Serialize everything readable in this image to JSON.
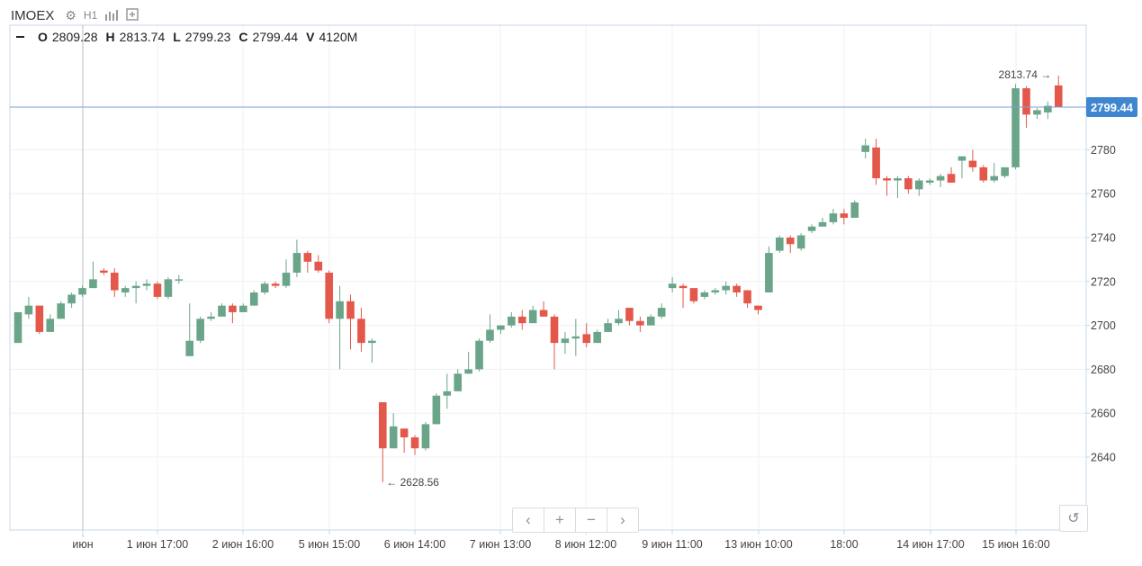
{
  "toolbar": {
    "symbol": "IMOEX",
    "interval": "H1",
    "icons": [
      "gear-icon",
      "bars-icon",
      "compare-icon"
    ]
  },
  "ohlc": {
    "o_label": "O",
    "o": "2809.28",
    "h_label": "H",
    "h": "2813.74",
    "l_label": "L",
    "l": "2799.23",
    "c_label": "C",
    "c": "2799.44",
    "v_label": "V",
    "v": "4120M"
  },
  "nav": {
    "prev": "‹",
    "zoom_in": "+",
    "zoom_out": "−",
    "next": "›",
    "reset": "↺"
  },
  "colors": {
    "up": "#6aa58a",
    "down": "#e3584b",
    "grid": "#eef0f3",
    "price_line": "#7b9ed6",
    "price_tag": "#3f86d1"
  },
  "chart_data": {
    "type": "candlestick",
    "ylim": [
      2620,
      2820
    ],
    "y_ticks": [
      2640,
      2660,
      2680,
      2700,
      2720,
      2740,
      2760,
      2780
    ],
    "x_ticks": [
      "июн",
      "1 июн 17:00",
      "2 июн 16:00",
      "5 июн 15:00",
      "6 июн 14:00",
      "7 июн 13:00",
      "8 июн 12:00",
      "9 июн 11:00",
      "13 июн 10:00",
      "18:00",
      "14 июн 17:00",
      "15 июн 16:00"
    ],
    "last_price": 2799.44,
    "last_price_label": "2799.44",
    "max_label": "2813.74 →",
    "min_label": "← 2628.56",
    "candles": [
      [
        2692,
        2706,
        2692,
        2706
      ],
      [
        2705,
        2713,
        2703,
        2709
      ],
      [
        2709,
        2709,
        2696,
        2697
      ],
      [
        2697,
        2705,
        2697,
        2703
      ],
      [
        2703,
        2711,
        2703,
        2710
      ],
      [
        2710,
        2715,
        2708,
        2714
      ],
      [
        2714,
        2718,
        2713,
        2717
      ],
      [
        2717,
        2729,
        2717,
        2721
      ],
      [
        2725,
        2726,
        2723,
        2724
      ],
      [
        2724,
        2726,
        2713,
        2716
      ],
      [
        2715,
        2718,
        2713,
        2717
      ],
      [
        2717,
        2720,
        2710,
        2718
      ],
      [
        2718,
        2721,
        2716,
        2719
      ],
      [
        2719,
        2720,
        2712,
        2713
      ],
      [
        2713,
        2722,
        2712,
        2721
      ],
      [
        2721,
        2723,
        2719,
        2721
      ],
      [
        2686,
        2710,
        2686,
        2693
      ],
      [
        2693,
        2704,
        2692,
        2703
      ],
      [
        2703,
        2706,
        2702,
        2704
      ],
      [
        2704,
        2710,
        2704,
        2709
      ],
      [
        2709,
        2710,
        2701,
        2706
      ],
      [
        2706,
        2710,
        2706,
        2709
      ],
      [
        2709,
        2716,
        2709,
        2715
      ],
      [
        2715,
        2720,
        2714,
        2719
      ],
      [
        2719,
        2720,
        2717,
        2718
      ],
      [
        2718,
        2730,
        2717,
        2724
      ],
      [
        2724,
        2739,
        2722,
        2733
      ],
      [
        2733,
        2734,
        2724,
        2729
      ],
      [
        2729,
        2732,
        2724,
        2725
      ],
      [
        2724,
        2725,
        2701,
        2703
      ],
      [
        2703,
        2718,
        2680,
        2711
      ],
      [
        2711,
        2714,
        2689,
        2703
      ],
      [
        2703,
        2708,
        2688,
        2692
      ],
      [
        2692,
        2694,
        2683,
        2693
      ],
      [
        2665,
        2665,
        2628.56,
        2644
      ],
      [
        2644,
        2660,
        2644,
        2654
      ],
      [
        2653,
        2653,
        2642,
        2649
      ],
      [
        2649,
        2650,
        2641,
        2644
      ],
      [
        2644,
        2656,
        2643,
        2655
      ],
      [
        2655,
        2669,
        2655,
        2668
      ],
      [
        2668,
        2678,
        2662,
        2670
      ],
      [
        2670,
        2680,
        2670,
        2678
      ],
      [
        2678,
        2688,
        2678,
        2680
      ],
      [
        2680,
        2694,
        2679,
        2693
      ],
      [
        2693,
        2705,
        2692,
        2698
      ],
      [
        2698,
        2700,
        2696,
        2700
      ],
      [
        2700,
        2706,
        2699,
        2704
      ],
      [
        2704,
        2707,
        2698,
        2701
      ],
      [
        2701,
        2709,
        2701,
        2707
      ],
      [
        2707,
        2711,
        2704,
        2704
      ],
      [
        2704,
        2705,
        2680,
        2692
      ],
      [
        2692,
        2697,
        2687,
        2694
      ],
      [
        2694,
        2703,
        2686,
        2695
      ],
      [
        2696,
        2701,
        2690,
        2692
      ],
      [
        2692,
        2698,
        2692,
        2697
      ],
      [
        2697,
        2703,
        2697,
        2701
      ],
      [
        2701,
        2707,
        2700,
        2703
      ],
      [
        2708,
        2708,
        2700,
        2702
      ],
      [
        2702,
        2704,
        2697,
        2700
      ],
      [
        2700,
        2705,
        2700,
        2704
      ],
      [
        2704,
        2710,
        2703,
        2708
      ],
      [
        2717,
        2722,
        2715,
        2719
      ],
      [
        2718,
        2719,
        2708,
        2717
      ],
      [
        2717,
        2717,
        2710,
        2711
      ],
      [
        2713,
        2716,
        2712,
        2715
      ],
      [
        2715,
        2717,
        2714,
        2716
      ],
      [
        2716,
        2720,
        2714,
        2718
      ],
      [
        2718,
        2719,
        2713,
        2715
      ],
      [
        2716,
        2716,
        2708,
        2710
      ],
      [
        2709,
        2709,
        2705,
        2707
      ],
      [
        2715,
        2736,
        2715,
        2733
      ],
      [
        2734,
        2741,
        2733,
        2740
      ],
      [
        2740,
        2741,
        2733,
        2737
      ],
      [
        2735,
        2742,
        2734,
        2741
      ],
      [
        2743,
        2746,
        2742,
        2745
      ],
      [
        2745,
        2749,
        2745,
        2747
      ],
      [
        2747,
        2753,
        2746,
        2751
      ],
      [
        2751,
        2753,
        2746,
        2749
      ],
      [
        2749,
        2757,
        2749,
        2756
      ],
      [
        2779,
        2785,
        2776,
        2782
      ],
      [
        2781,
        2785,
        2764,
        2767
      ],
      [
        2767,
        2768,
        2759,
        2766
      ],
      [
        2766,
        2768,
        2758,
        2767
      ],
      [
        2767,
        2768,
        2760,
        2762
      ],
      [
        2762,
        2767,
        2759,
        2766
      ],
      [
        2765,
        2767,
        2764,
        2766
      ],
      [
        2766,
        2769,
        2763,
        2768
      ],
      [
        2769,
        2772,
        2765,
        2765
      ],
      [
        2775,
        2777,
        2767,
        2777
      ],
      [
        2775,
        2780,
        2770,
        2772
      ],
      [
        2772,
        2773,
        2765,
        2766
      ],
      [
        2766,
        2774,
        2765,
        2768
      ],
      [
        2768,
        2772,
        2767,
        2772
      ],
      [
        2772,
        2810,
        2771,
        2808
      ],
      [
        2808,
        2809,
        2790,
        2796
      ],
      [
        2796,
        2799,
        2794,
        2798
      ],
      [
        2797,
        2802,
        2794,
        2800
      ],
      [
        2809.28,
        2813.74,
        2799.23,
        2799.44
      ]
    ]
  }
}
